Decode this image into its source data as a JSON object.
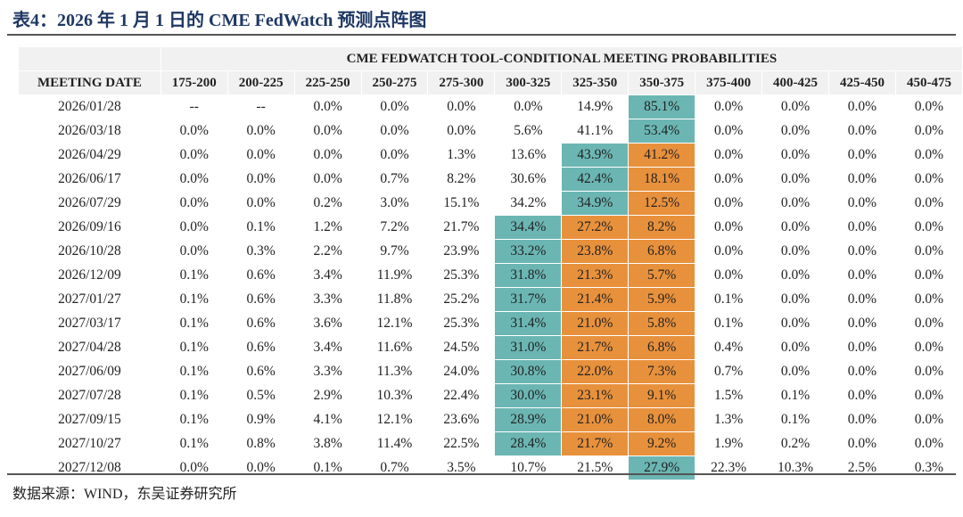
{
  "title": "表4：2026 年 1 月 1 日的 CME FedWatch 预测点阵图",
  "table": {
    "group_header": "CME FEDWATCH TOOL-CONDITIONAL MEETING PROBABILITIES",
    "date_header": "MEETING DATE",
    "columns": [
      "175-200",
      "200-225",
      "225-250",
      "250-275",
      "275-300",
      "300-325",
      "325-350",
      "350-375",
      "375-400",
      "400-425",
      "425-450",
      "450-475"
    ],
    "colors": {
      "teal": "#6bb6b3",
      "orange": "#e8913c"
    },
    "rows": [
      {
        "date": "2026/01/28",
        "cells": [
          "--",
          "--",
          "0.0%",
          "0.0%",
          "0.0%",
          "0.0%",
          "14.9%",
          "85.1%",
          "0.0%",
          "0.0%",
          "0.0%",
          "0.0%"
        ],
        "teal": [
          7
        ],
        "orange": []
      },
      {
        "date": "2026/03/18",
        "cells": [
          "0.0%",
          "0.0%",
          "0.0%",
          "0.0%",
          "0.0%",
          "5.6%",
          "41.1%",
          "53.4%",
          "0.0%",
          "0.0%",
          "0.0%",
          "0.0%"
        ],
        "teal": [
          7
        ],
        "orange": []
      },
      {
        "date": "2026/04/29",
        "cells": [
          "0.0%",
          "0.0%",
          "0.0%",
          "0.0%",
          "1.3%",
          "13.6%",
          "43.9%",
          "41.2%",
          "0.0%",
          "0.0%",
          "0.0%",
          "0.0%"
        ],
        "teal": [
          6
        ],
        "orange": [
          7
        ]
      },
      {
        "date": "2026/06/17",
        "cells": [
          "0.0%",
          "0.0%",
          "0.0%",
          "0.7%",
          "8.2%",
          "30.6%",
          "42.4%",
          "18.1%",
          "0.0%",
          "0.0%",
          "0.0%",
          "0.0%"
        ],
        "teal": [
          6
        ],
        "orange": [
          7
        ]
      },
      {
        "date": "2026/07/29",
        "cells": [
          "0.0%",
          "0.0%",
          "0.2%",
          "3.0%",
          "15.1%",
          "34.2%",
          "34.9%",
          "12.5%",
          "0.0%",
          "0.0%",
          "0.0%",
          "0.0%"
        ],
        "teal": [
          6
        ],
        "orange": [
          7
        ]
      },
      {
        "date": "2026/09/16",
        "cells": [
          "0.0%",
          "0.1%",
          "1.2%",
          "7.2%",
          "21.7%",
          "34.4%",
          "27.2%",
          "8.2%",
          "0.0%",
          "0.0%",
          "0.0%",
          "0.0%"
        ],
        "teal": [
          5
        ],
        "orange": [
          6,
          7
        ]
      },
      {
        "date": "2026/10/28",
        "cells": [
          "0.0%",
          "0.3%",
          "2.2%",
          "9.7%",
          "23.9%",
          "33.2%",
          "23.8%",
          "6.8%",
          "0.0%",
          "0.0%",
          "0.0%",
          "0.0%"
        ],
        "teal": [
          5
        ],
        "orange": [
          6,
          7
        ]
      },
      {
        "date": "2026/12/09",
        "cells": [
          "0.1%",
          "0.6%",
          "3.4%",
          "11.9%",
          "25.3%",
          "31.8%",
          "21.3%",
          "5.7%",
          "0.0%",
          "0.0%",
          "0.0%",
          "0.0%"
        ],
        "teal": [
          5
        ],
        "orange": [
          6,
          7
        ]
      },
      {
        "date": "2027/01/27",
        "cells": [
          "0.1%",
          "0.6%",
          "3.3%",
          "11.8%",
          "25.2%",
          "31.7%",
          "21.4%",
          "5.9%",
          "0.1%",
          "0.0%",
          "0.0%",
          "0.0%"
        ],
        "teal": [
          5
        ],
        "orange": [
          6,
          7
        ]
      },
      {
        "date": "2027/03/17",
        "cells": [
          "0.1%",
          "0.6%",
          "3.6%",
          "12.1%",
          "25.3%",
          "31.4%",
          "21.0%",
          "5.8%",
          "0.1%",
          "0.0%",
          "0.0%",
          "0.0%"
        ],
        "teal": [
          5
        ],
        "orange": [
          6,
          7
        ]
      },
      {
        "date": "2027/04/28",
        "cells": [
          "0.1%",
          "0.6%",
          "3.4%",
          "11.6%",
          "24.5%",
          "31.0%",
          "21.7%",
          "6.8%",
          "0.4%",
          "0.0%",
          "0.0%",
          "0.0%"
        ],
        "teal": [
          5
        ],
        "orange": [
          6,
          7
        ]
      },
      {
        "date": "2027/06/09",
        "cells": [
          "0.1%",
          "0.6%",
          "3.3%",
          "11.3%",
          "24.0%",
          "30.8%",
          "22.0%",
          "7.3%",
          "0.7%",
          "0.0%",
          "0.0%",
          "0.0%"
        ],
        "teal": [
          5
        ],
        "orange": [
          6,
          7
        ]
      },
      {
        "date": "2027/07/28",
        "cells": [
          "0.1%",
          "0.5%",
          "2.9%",
          "10.3%",
          "22.4%",
          "30.0%",
          "23.1%",
          "9.1%",
          "1.5%",
          "0.1%",
          "0.0%",
          "0.0%"
        ],
        "teal": [
          5
        ],
        "orange": [
          6,
          7
        ]
      },
      {
        "date": "2027/09/15",
        "cells": [
          "0.1%",
          "0.9%",
          "4.1%",
          "12.1%",
          "23.6%",
          "28.9%",
          "21.0%",
          "8.0%",
          "1.3%",
          "0.1%",
          "0.0%",
          "0.0%"
        ],
        "teal": [
          5
        ],
        "orange": [
          6,
          7
        ]
      },
      {
        "date": "2027/10/27",
        "cells": [
          "0.1%",
          "0.8%",
          "3.8%",
          "11.4%",
          "22.5%",
          "28.4%",
          "21.7%",
          "9.2%",
          "1.9%",
          "0.2%",
          "0.0%",
          "0.0%"
        ],
        "teal": [
          5
        ],
        "orange": [
          6,
          7
        ]
      },
      {
        "date": "2027/12/08",
        "cells": [
          "0.0%",
          "0.0%",
          "0.1%",
          "0.7%",
          "3.5%",
          "10.7%",
          "21.5%",
          "27.9%",
          "22.3%",
          "10.3%",
          "2.5%",
          "0.3%"
        ],
        "teal": [
          7
        ],
        "orange": []
      }
    ]
  },
  "source": "数据来源：WIND，东吴证券研究所"
}
